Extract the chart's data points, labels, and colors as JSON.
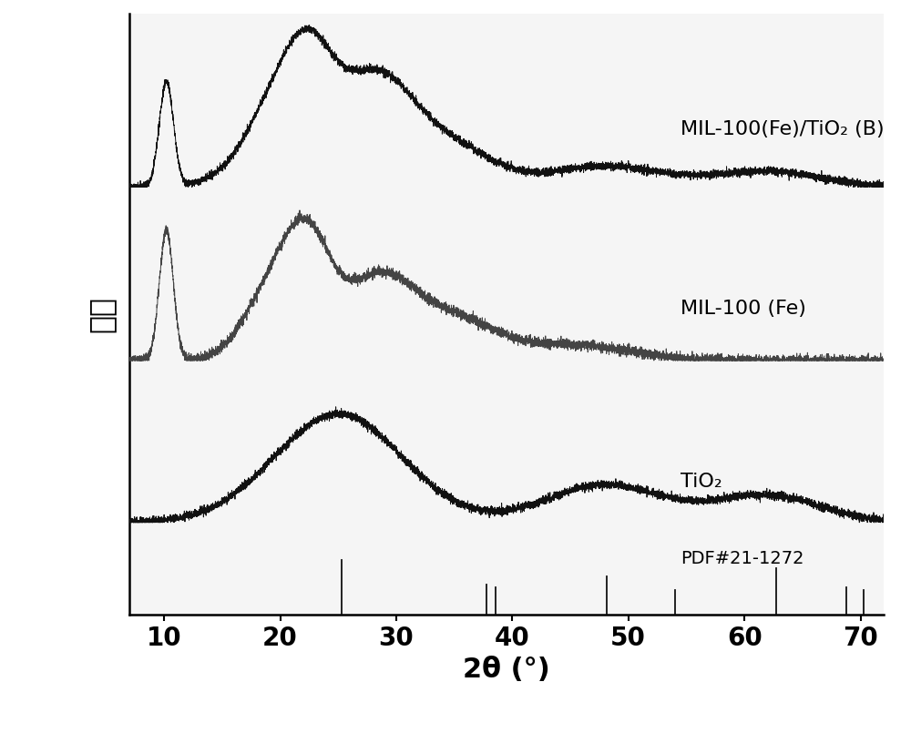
{
  "xlabel": "2θ (°)",
  "ylabel": "强度",
  "xlim": [
    7,
    72
  ],
  "xticks": [
    10,
    20,
    30,
    40,
    50,
    60,
    70
  ],
  "background_color": "#ffffff",
  "plot_bg_color": "#f5f5f5",
  "label_fontsize": 22,
  "tick_fontsize": 20,
  "pdf_label": "PDF#21-1272",
  "curve_labels": [
    "MIL-100(Fe)/TiO₂ (B)",
    "MIL-100 (Fe)",
    "TiO₂"
  ],
  "pdf_peaks": [
    25.3,
    37.8,
    38.6,
    48.1,
    54.0,
    62.7,
    68.8,
    70.3
  ],
  "pdf_peak_heights": [
    1.0,
    0.55,
    0.5,
    0.7,
    0.45,
    0.85,
    0.5,
    0.45
  ],
  "noise_seed": 42,
  "curve_colors": [
    "#111111",
    "#444444",
    "#111111"
  ],
  "offsets": [
    0.68,
    0.38,
    0.1
  ],
  "comp_scale": 0.28,
  "mil_scale": 0.26,
  "tio2_scale": 0.2,
  "pdf_stick_scale": 0.095,
  "ylim": [
    -0.06,
    0.98
  ]
}
